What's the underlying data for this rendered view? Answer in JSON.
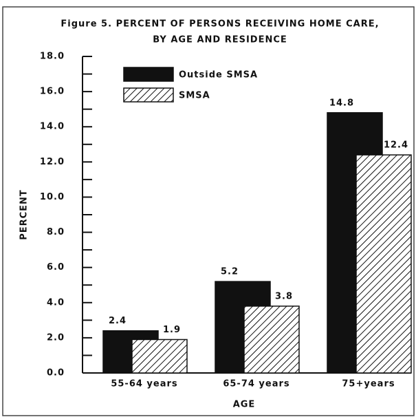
{
  "chart_data": {
    "type": "bar",
    "title": [
      "Figure 5. PERCENT OF PERSONS RECEIVING HOME CARE,",
      "BY AGE AND RESIDENCE"
    ],
    "x_label": "AGE",
    "y_label": "PERCENT",
    "categories": [
      "55-64 years",
      "65-74 years",
      "75+years"
    ],
    "series": [
      {
        "name": "Outside SMSA",
        "color": "#111111",
        "values": [
          2.4,
          5.2,
          14.8
        ]
      },
      {
        "name": "SMSA",
        "color": "hatched",
        "values": [
          1.9,
          3.8,
          12.4
        ]
      }
    ],
    "ylim": [
      0,
      18
    ],
    "yticks": [
      {
        "value": 0,
        "label": "0.0"
      },
      {
        "value": 2,
        "label": "2.0"
      },
      {
        "value": 4,
        "label": "4.0"
      },
      {
        "value": 6,
        "label": "6.0"
      },
      {
        "value": 8,
        "label": "8.0"
      },
      {
        "value": 10,
        "label": "10.0"
      },
      {
        "value": 12,
        "label": "12.0"
      },
      {
        "value": 14,
        "label": "14.0"
      },
      {
        "value": 16,
        "label": "16.0"
      },
      {
        "value": 18,
        "label": "18.0"
      }
    ],
    "legend": "upper left"
  }
}
